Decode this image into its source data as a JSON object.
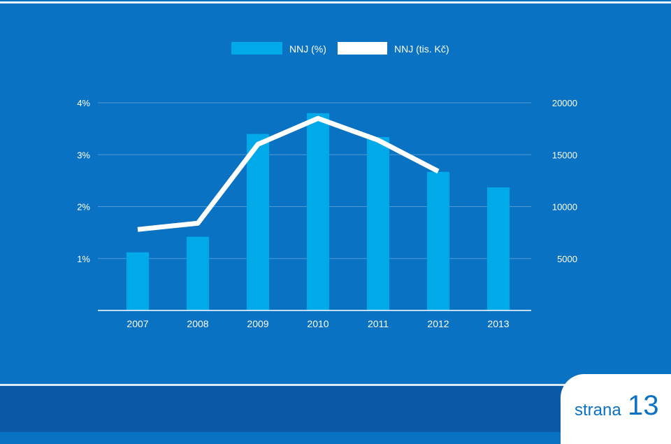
{
  "chart_data": {
    "type": "bar",
    "categories": [
      "2007",
      "2008",
      "2009",
      "2010",
      "2011",
      "2012",
      "2013"
    ],
    "series": [
      {
        "name": "NNJ (%)",
        "chart": "bar",
        "axis": "left",
        "values": [
          1.12,
          1.42,
          3.4,
          3.8,
          3.34,
          2.67,
          2.37
        ],
        "color": "#00a9e8"
      },
      {
        "name": "NNJ (tis. Kč)",
        "chart": "line",
        "axis": "right",
        "values": [
          7800,
          8400,
          16000,
          18500,
          16400,
          13400,
          null
        ],
        "color": "#ffffff"
      }
    ],
    "y_left": {
      "ticks": [
        1,
        2,
        3,
        4
      ],
      "tick_labels": [
        "1%",
        "2%",
        "3%",
        "4%"
      ],
      "range": [
        0,
        4
      ]
    },
    "y_right": {
      "ticks": [
        5000,
        10000,
        15000,
        20000
      ],
      "tick_labels": [
        "5000",
        "10000",
        "15000",
        "20000"
      ],
      "range": [
        0,
        20000
      ]
    },
    "grid": true,
    "legend": "top"
  },
  "page": {
    "label": "strana",
    "number": "13"
  },
  "colors": {
    "background": "#0a72c3",
    "footer": "#0a5aa8",
    "bar": "#00a9e8",
    "line": "#ffffff",
    "grid": "#4f9ad6"
  }
}
